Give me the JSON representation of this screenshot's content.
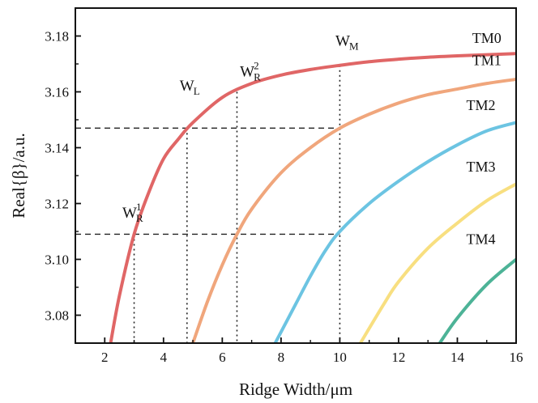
{
  "chart_data": {
    "type": "line",
    "xlabel": "Ridge Width/μm",
    "ylabel": "Real{β}/a.u.",
    "xlim": [
      1,
      16
    ],
    "ylim": [
      3.07,
      3.19
    ],
    "xticks": [
      2,
      4,
      6,
      8,
      10,
      12,
      14,
      16
    ],
    "yticks": [
      3.08,
      3.1,
      3.12,
      3.14,
      3.16,
      3.18
    ],
    "xtick_labels": [
      "2",
      "4",
      "6",
      "8",
      "10",
      "12",
      "14",
      "16"
    ],
    "ytick_labels": [
      "3.08",
      "3.10",
      "3.12",
      "3.14",
      "3.16",
      "3.18"
    ],
    "grid": false,
    "series": [
      {
        "name": "TM0",
        "color": "#e06666",
        "x": [
          2.2,
          2.5,
          3.0,
          3.5,
          4.0,
          4.5,
          5.0,
          6.0,
          7.0,
          8.0,
          9.0,
          10.0,
          11.0,
          12.0,
          13.0,
          14.0,
          15.0,
          16.0
        ],
        "y": [
          3.07,
          3.087,
          3.109,
          3.124,
          3.136,
          3.143,
          3.149,
          3.158,
          3.163,
          3.166,
          3.168,
          3.1695,
          3.1708,
          3.1717,
          3.1724,
          3.1729,
          3.1733,
          3.1737
        ]
      },
      {
        "name": "TM1",
        "color": "#f0a67c",
        "x": [
          5.0,
          5.5,
          6.0,
          6.5,
          7.0,
          8.0,
          9.0,
          10.0,
          11.0,
          12.0,
          13.0,
          14.0,
          15.0,
          16.0
        ],
        "y": [
          3.07,
          3.085,
          3.098,
          3.109,
          3.118,
          3.131,
          3.14,
          3.147,
          3.152,
          3.156,
          3.159,
          3.161,
          3.163,
          3.1645
        ]
      },
      {
        "name": "TM2",
        "color": "#6cc4e2",
        "x": [
          7.8,
          8.5,
          9.0,
          9.5,
          10.0,
          11.0,
          12.0,
          13.0,
          14.0,
          15.0,
          16.0
        ],
        "y": [
          3.07,
          3.084,
          3.094,
          3.103,
          3.11,
          3.12,
          3.128,
          3.135,
          3.141,
          3.146,
          3.149
        ]
      },
      {
        "name": "TM3",
        "color": "#f8df80",
        "x": [
          10.7,
          11.5,
          12.0,
          13.0,
          14.0,
          15.0,
          16.0
        ],
        "y": [
          3.07,
          3.084,
          3.092,
          3.104,
          3.113,
          3.121,
          3.127
        ]
      },
      {
        "name": "TM4",
        "color": "#4db397",
        "x": [
          13.4,
          14.0,
          15.0,
          16.0
        ],
        "y": [
          3.07,
          3.079,
          3.091,
          3.1
        ]
      }
    ],
    "dashed_lines": [
      {
        "y": 3.147,
        "x_from": 1,
        "x_to": 10.0
      },
      {
        "y": 3.109,
        "x_from": 1,
        "x_to": 10.0
      }
    ],
    "dotted_lines": [
      {
        "x": 3.0,
        "y_to": 3.109
      },
      {
        "x": 4.8,
        "y_to": 3.147
      },
      {
        "x": 6.5,
        "y_to": 3.16
      },
      {
        "x": 10.0,
        "y_to": 3.1695
      }
    ],
    "annotations": [
      {
        "main": "W",
        "sub": "L",
        "x": 4.55,
        "y": 3.1605
      },
      {
        "main": "W",
        "sub": "M",
        "x": 9.85,
        "y": 3.1765
      },
      {
        "main": "W",
        "sup": "2",
        "sub": "R",
        "x": 6.6,
        "y": 3.1655
      },
      {
        "main": "W",
        "sup": "1",
        "sub": "R",
        "x": 2.6,
        "y": 3.115
      }
    ],
    "series_labels": [
      {
        "text": "TM0",
        "x": 15.0,
        "y": 3.1775
      },
      {
        "text": "TM1",
        "x": 15.0,
        "y": 3.1695
      },
      {
        "text": "TM2",
        "x": 14.8,
        "y": 3.1535
      },
      {
        "text": "TM3",
        "x": 14.8,
        "y": 3.1315
      },
      {
        "text": "TM4",
        "x": 14.8,
        "y": 3.1055
      }
    ]
  }
}
